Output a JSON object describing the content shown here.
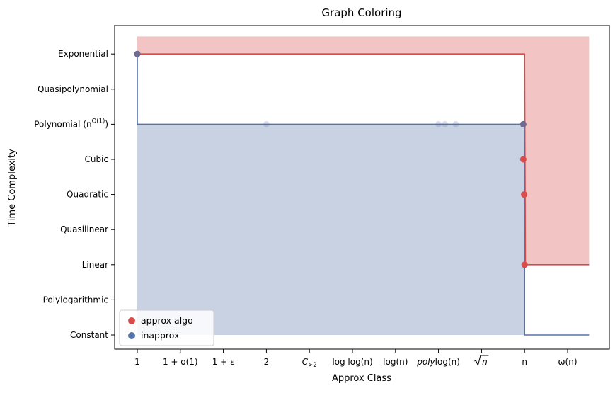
{
  "chart_data": {
    "type": "step",
    "title": "Graph Coloring",
    "xlabel": "Approx Class",
    "ylabel": "Time Complexity",
    "x_categories": [
      "1",
      "1 + o(1)",
      "1 + ε",
      "2",
      "C>2",
      "log log(n)",
      "log(n)",
      "poly log(n)",
      "√n",
      "n",
      "ω(n)"
    ],
    "y_categories": [
      "Constant",
      "Polylogarithmic",
      "Linear",
      "Quasilinear",
      "Quadratic",
      "Cubic",
      "Polynomial (n^O(1))",
      "Quasipolynomial",
      "Exponential"
    ],
    "y_labels": {
      "polynomial_base": "Polynomial (n",
      "polynomial_sup": "O(1)",
      "polynomial_close": ")"
    },
    "x_labels": {
      "c_base": "C",
      "c_sub": ">2",
      "poly_prefix": "poly",
      "sqrt_arg": "n"
    },
    "series": [
      {
        "name": "approx algo",
        "color": "#d94a4a",
        "fill": "#f2c4c4",
        "boundary": [
          [
            0,
            8
          ],
          [
            9,
            8
          ],
          [
            9.02,
            2
          ],
          [
            10.5,
            2
          ]
        ],
        "points": [
          [
            0,
            8
          ],
          [
            8.97,
            6
          ],
          [
            8.97,
            5
          ],
          [
            8.99,
            4
          ],
          [
            9.0,
            2
          ]
        ]
      },
      {
        "name": "inapprox",
        "color": "#5573a8",
        "fill": "#c9d2e2",
        "boundary": [
          [
            0,
            8
          ],
          [
            0,
            6
          ],
          [
            9,
            6
          ],
          [
            9,
            0
          ],
          [
            10.5,
            0
          ]
        ],
        "points": [
          [
            0,
            8
          ],
          [
            8.97,
            6
          ]
        ],
        "faint_points": [
          [
            3,
            6
          ],
          [
            7,
            6
          ],
          [
            7.15,
            6
          ],
          [
            7.4,
            6
          ]
        ]
      }
    ],
    "legend_position": "lower-left",
    "grid": false
  }
}
